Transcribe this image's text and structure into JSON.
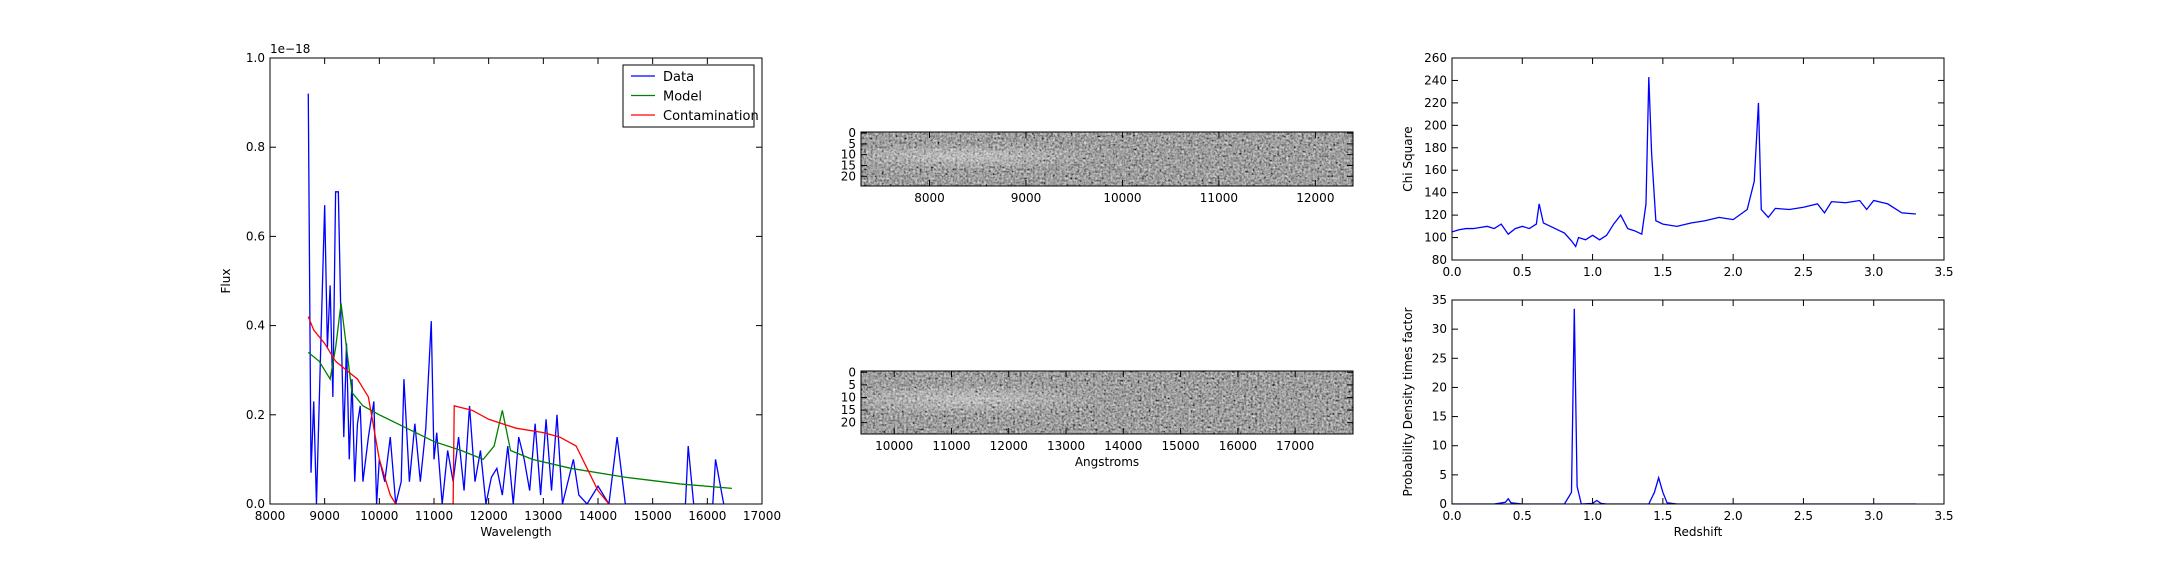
{
  "chart_data": [
    {
      "type": "line",
      "xlabel": "Wavelength",
      "ylabel": "Flux",
      "offset_text": "1e−18",
      "xlim": [
        8000,
        17000
      ],
      "xticks": [
        8000,
        9000,
        10000,
        11000,
        12000,
        13000,
        14000,
        15000,
        16000,
        17000
      ],
      "ylim": [
        0,
        1.0
      ],
      "yticks": [
        {
          "value": 0,
          "label": "0.0"
        },
        0.2,
        0.4,
        0.6,
        0.8,
        {
          "value": 1.0,
          "label": "1.0"
        }
      ],
      "legend": "upper right",
      "series": [
        {
          "name": "Data",
          "color": "#0000ff",
          "x": [
            8700,
            8750,
            8800,
            8850,
            8950,
            9000,
            9050,
            9100,
            9150,
            9200,
            9250,
            9300,
            9350,
            9400,
            9450,
            9500,
            9550,
            9600,
            9650,
            9700,
            9800,
            9900,
            9950,
            10000,
            10100,
            10200,
            10300,
            10400,
            10450,
            10550,
            10650,
            10750,
            10850,
            10950,
            11000,
            11050,
            11150,
            11250,
            11350,
            11450,
            11550,
            11650,
            11750,
            11850,
            11950,
            12050,
            12150,
            12250,
            12350,
            12450,
            12550,
            12650,
            12750,
            12850,
            12950,
            13050,
            13150,
            13250,
            13350,
            13550,
            13650,
            13800,
            14000,
            14200,
            14350,
            14500,
            15600,
            15650,
            15750,
            16100,
            16150,
            16300
          ],
          "values": [
            0.92,
            0.07,
            0.23,
            0,
            0.45,
            0.67,
            0.35,
            0.49,
            0.24,
            0.7,
            0.7,
            0.4,
            0.15,
            0.36,
            0.1,
            0.28,
            0.05,
            0.18,
            0.22,
            0.05,
            0.15,
            0.23,
            0,
            0.1,
            0.05,
            0.15,
            0,
            0.05,
            0.28,
            0.05,
            0.18,
            0.05,
            0.17,
            0.41,
            0.1,
            0.16,
            0,
            0.12,
            0.05,
            0.15,
            0.03,
            0.22,
            0.05,
            0.12,
            0,
            0.06,
            0.08,
            0.02,
            0.13,
            0,
            0.15,
            0.1,
            0.03,
            0.18,
            0.02,
            0.19,
            0.03,
            0.2,
            0,
            0.1,
            0.02,
            0,
            0.04,
            0,
            0.15,
            0,
            0,
            0.13,
            0,
            0,
            0.1,
            0
          ]
        },
        {
          "name": "Model",
          "color": "#008000",
          "x": [
            8700,
            8900,
            9100,
            9200,
            9300,
            9400,
            9500,
            9700,
            10000,
            10500,
            11000,
            11500,
            11900,
            12100,
            12250,
            12400,
            12800,
            13500,
            14500,
            15500,
            16450
          ],
          "values": [
            0.34,
            0.32,
            0.28,
            0.35,
            0.45,
            0.35,
            0.25,
            0.22,
            0.2,
            0.17,
            0.14,
            0.12,
            0.1,
            0.13,
            0.21,
            0.12,
            0.1,
            0.08,
            0.06,
            0.045,
            0.035
          ]
        },
        {
          "name": "Contamination",
          "color": "#ff0000",
          "x": [
            8700,
            8800,
            9000,
            9200,
            9400,
            9600,
            9800,
            10000,
            10200,
            10300,
            11350,
            11370,
            11700,
            12000,
            12500,
            13000,
            13300,
            13600,
            13800,
            14000,
            14200
          ],
          "values": [
            0.42,
            0.39,
            0.36,
            0.32,
            0.3,
            0.28,
            0.24,
            0.1,
            0.02,
            0,
            0,
            0.22,
            0.21,
            0.19,
            0.17,
            0.16,
            0.15,
            0.13,
            0.08,
            0.03,
            0
          ]
        }
      ]
    },
    {
      "type": "image",
      "xlim": [
        7290,
        12390
      ],
      "xticks": [
        8000,
        9000,
        10000,
        11000,
        12000
      ],
      "ylim": [
        24.5,
        -0.5
      ],
      "yticks": [
        0,
        5,
        10,
        15,
        20
      ]
    },
    {
      "type": "image",
      "xlabel": "Angstroms",
      "xlim": [
        9420,
        18010
      ],
      "xticks": [
        10000,
        11000,
        12000,
        13000,
        14000,
        15000,
        16000,
        17000
      ],
      "ylim": [
        24.5,
        -0.5
      ],
      "yticks": [
        0,
        5,
        10,
        15,
        20
      ]
    },
    {
      "type": "line",
      "ylabel": "Chi Square",
      "xlim": [
        0,
        3.5
      ],
      "xticks": [
        {
          "value": 0,
          "label": "0.0"
        },
        0.5,
        {
          "value": 1,
          "label": "1.0"
        },
        1.5,
        {
          "value": 2,
          "label": "2.0"
        },
        2.5,
        {
          "value": 3,
          "label": "3.0"
        },
        3.5
      ],
      "ylim": [
        80,
        260
      ],
      "yticks": [
        80,
        100,
        120,
        140,
        160,
        180,
        200,
        220,
        240,
        260
      ],
      "series": [
        {
          "color": "#0000ff",
          "x": [
            0,
            0.05,
            0.1,
            0.15,
            0.2,
            0.25,
            0.3,
            0.35,
            0.4,
            0.45,
            0.5,
            0.55,
            0.6,
            0.62,
            0.65,
            0.7,
            0.75,
            0.8,
            0.85,
            0.88,
            0.9,
            0.95,
            1.0,
            1.05,
            1.1,
            1.15,
            1.2,
            1.25,
            1.3,
            1.35,
            1.38,
            1.4,
            1.42,
            1.45,
            1.5,
            1.6,
            1.7,
            1.8,
            1.9,
            2.0,
            2.1,
            2.15,
            2.18,
            2.2,
            2.25,
            2.3,
            2.4,
            2.5,
            2.6,
            2.65,
            2.7,
            2.8,
            2.9,
            2.95,
            3.0,
            3.1,
            3.2,
            3.3
          ],
          "values": [
            105,
            107,
            108,
            108,
            109,
            110,
            108,
            112,
            103,
            108,
            110,
            108,
            112,
            130,
            113,
            110,
            107,
            104,
            97,
            92,
            100,
            98,
            102,
            98,
            102,
            112,
            120,
            108,
            106,
            103,
            130,
            243,
            175,
            115,
            112,
            110,
            113,
            115,
            118,
            116,
            125,
            150,
            220,
            125,
            118,
            126,
            125,
            127,
            130,
            122,
            132,
            131,
            133,
            125,
            133,
            130,
            122,
            121
          ]
        }
      ]
    },
    {
      "type": "line",
      "xlabel": "Redshift",
      "ylabel": "Probability Density times factor",
      "xlim": [
        0,
        3.5
      ],
      "xticks": [
        {
          "value": 0,
          "label": "0.0"
        },
        0.5,
        {
          "value": 1,
          "label": "1.0"
        },
        1.5,
        {
          "value": 2,
          "label": "2.0"
        },
        2.5,
        {
          "value": 3,
          "label": "3.0"
        },
        3.5
      ],
      "ylim": [
        0,
        35
      ],
      "yticks": [
        0,
        5,
        10,
        15,
        20,
        25,
        30,
        35
      ],
      "series": [
        {
          "color": "#0000ff",
          "x": [
            0,
            0.3,
            0.38,
            0.4,
            0.42,
            0.5,
            0.8,
            0.85,
            0.87,
            0.89,
            0.92,
            1.0,
            1.03,
            1.06,
            1.1,
            1.4,
            1.44,
            1.47,
            1.5,
            1.53,
            1.6,
            2.0,
            3.3
          ],
          "values": [
            0,
            0,
            0.3,
            0.9,
            0.2,
            0,
            0,
            2,
            33.5,
            3,
            0,
            0.1,
            0.6,
            0.1,
            0,
            0,
            2,
            4.5,
            2,
            0.2,
            0,
            0,
            0
          ]
        }
      ]
    }
  ]
}
